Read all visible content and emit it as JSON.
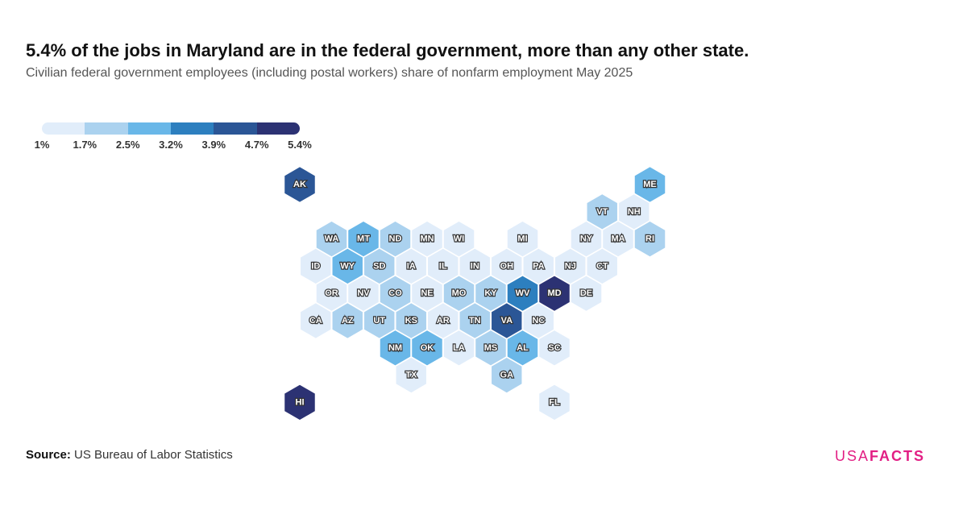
{
  "header": {
    "title": "5.4% of the jobs in Maryland are in the federal government, more than any other state.",
    "subtitle": "Civilian federal government employees (including postal workers) share of nonfarm employment May 2025"
  },
  "legend": {
    "ticks": [
      "1%",
      "1.7%",
      "2.5%",
      "3.2%",
      "3.9%",
      "4.7%",
      "5.4%"
    ],
    "bins": [
      {
        "min": 1.0,
        "max": 1.7,
        "color": "#e1edfa"
      },
      {
        "min": 1.7,
        "max": 2.5,
        "color": "#abd2ef"
      },
      {
        "min": 2.5,
        "max": 3.2,
        "color": "#69b7e8"
      },
      {
        "min": 3.2,
        "max": 3.9,
        "color": "#2d7fbf"
      },
      {
        "min": 3.9,
        "max": 4.7,
        "color": "#2b5696"
      },
      {
        "min": 4.7,
        "max": 5.4,
        "color": "#2c3273"
      }
    ]
  },
  "map": {
    "states": [
      {
        "abbr": "AK",
        "row": 0,
        "col": 0,
        "bin": 4
      },
      {
        "abbr": "ME",
        "row": 0,
        "col": 11,
        "bin": 2
      },
      {
        "abbr": "VT",
        "row": 1,
        "col": 10,
        "bin": 1
      },
      {
        "abbr": "NH",
        "row": 1,
        "col": 11,
        "bin": 0
      },
      {
        "abbr": "WA",
        "row": 2,
        "col": 1,
        "bin": 1
      },
      {
        "abbr": "MT",
        "row": 2,
        "col": 2,
        "bin": 2
      },
      {
        "abbr": "ND",
        "row": 2,
        "col": 3,
        "bin": 1
      },
      {
        "abbr": "MN",
        "row": 2,
        "col": 4,
        "bin": 0
      },
      {
        "abbr": "WI",
        "row": 2,
        "col": 5,
        "bin": 0
      },
      {
        "abbr": "MI",
        "row": 2,
        "col": 7,
        "bin": 0
      },
      {
        "abbr": "NY",
        "row": 2,
        "col": 9,
        "bin": 0
      },
      {
        "abbr": "MA",
        "row": 2,
        "col": 10,
        "bin": 0
      },
      {
        "abbr": "RI",
        "row": 2,
        "col": 11,
        "bin": 1
      },
      {
        "abbr": "ID",
        "row": 3,
        "col": 1,
        "bin": 0
      },
      {
        "abbr": "WY",
        "row": 3,
        "col": 2,
        "bin": 2
      },
      {
        "abbr": "SD",
        "row": 3,
        "col": 3,
        "bin": 1
      },
      {
        "abbr": "IA",
        "row": 3,
        "col": 4,
        "bin": 0
      },
      {
        "abbr": "IL",
        "row": 3,
        "col": 5,
        "bin": 0
      },
      {
        "abbr": "IN",
        "row": 3,
        "col": 6,
        "bin": 0
      },
      {
        "abbr": "OH",
        "row": 3,
        "col": 7,
        "bin": 0
      },
      {
        "abbr": "PA",
        "row": 3,
        "col": 8,
        "bin": 0
      },
      {
        "abbr": "NJ",
        "row": 3,
        "col": 9,
        "bin": 0
      },
      {
        "abbr": "CT",
        "row": 3,
        "col": 10,
        "bin": 0
      },
      {
        "abbr": "OR",
        "row": 4,
        "col": 1,
        "bin": 0
      },
      {
        "abbr": "NV",
        "row": 4,
        "col": 2,
        "bin": 0
      },
      {
        "abbr": "CO",
        "row": 4,
        "col": 3,
        "bin": 1
      },
      {
        "abbr": "NE",
        "row": 4,
        "col": 4,
        "bin": 0
      },
      {
        "abbr": "MO",
        "row": 4,
        "col": 5,
        "bin": 1
      },
      {
        "abbr": "KY",
        "row": 4,
        "col": 6,
        "bin": 1
      },
      {
        "abbr": "WV",
        "row": 4,
        "col": 7,
        "bin": 3
      },
      {
        "abbr": "MD",
        "row": 4,
        "col": 8,
        "bin": 5
      },
      {
        "abbr": "DE",
        "row": 4,
        "col": 9,
        "bin": 0
      },
      {
        "abbr": "CA",
        "row": 5,
        "col": 1,
        "bin": 0
      },
      {
        "abbr": "AZ",
        "row": 5,
        "col": 2,
        "bin": 1
      },
      {
        "abbr": "UT",
        "row": 5,
        "col": 3,
        "bin": 1
      },
      {
        "abbr": "KS",
        "row": 5,
        "col": 4,
        "bin": 1
      },
      {
        "abbr": "AR",
        "row": 5,
        "col": 5,
        "bin": 0
      },
      {
        "abbr": "TN",
        "row": 5,
        "col": 6,
        "bin": 1
      },
      {
        "abbr": "VA",
        "row": 5,
        "col": 7,
        "bin": 4
      },
      {
        "abbr": "NC",
        "row": 5,
        "col": 8,
        "bin": 0
      },
      {
        "abbr": "NM",
        "row": 6,
        "col": 3,
        "bin": 2
      },
      {
        "abbr": "OK",
        "row": 6,
        "col": 4,
        "bin": 2
      },
      {
        "abbr": "LA",
        "row": 6,
        "col": 5,
        "bin": 0
      },
      {
        "abbr": "MS",
        "row": 6,
        "col": 6,
        "bin": 1
      },
      {
        "abbr": "AL",
        "row": 6,
        "col": 7,
        "bin": 2
      },
      {
        "abbr": "SC",
        "row": 6,
        "col": 8,
        "bin": 0
      },
      {
        "abbr": "TX",
        "row": 7,
        "col": 4,
        "bin": 0
      },
      {
        "abbr": "GA",
        "row": 7,
        "col": 7,
        "bin": 1
      },
      {
        "abbr": "FL",
        "row": 8,
        "col": 8,
        "bin": 0
      },
      {
        "abbr": "HI",
        "row": 8,
        "col": 0,
        "bin": 5
      }
    ]
  },
  "footer": {
    "source_label": "Source:",
    "source_text": "US Bureau of Labor Statistics",
    "logo_thin": "USA",
    "logo_bold": "FACTS"
  }
}
